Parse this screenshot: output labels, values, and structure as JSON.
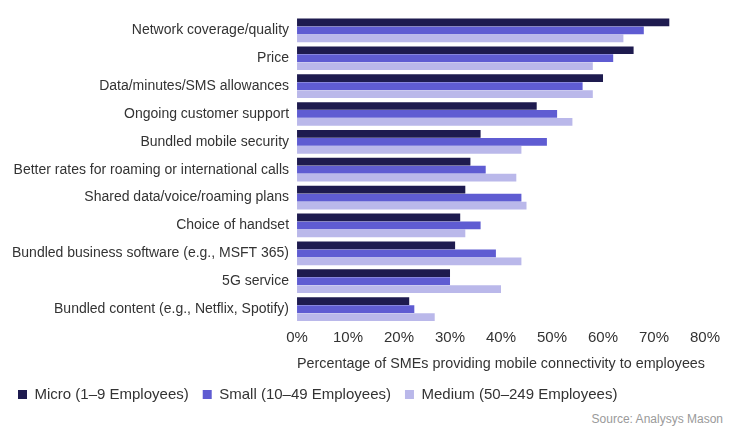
{
  "chart_data": {
    "type": "bar",
    "orientation": "horizontal",
    "xlabel": "Percentage of SMEs providing mobile connectivity to employees",
    "source": "Source: Analysys Mason",
    "categories": [
      "Network coverage/quality",
      "Price",
      "Data/minutes/SMS allowances",
      "Ongoing customer support",
      "Bundled mobile security",
      "Better rates for roaming or international calls",
      "Shared data/voice/roaming plans",
      "Choice of handset",
      "Bundled business software (e.g., MSFT 365)",
      "5G service",
      "Bundled content (e.g., Netflix, Spotify)"
    ],
    "series": [
      {
        "name": "Micro (1–9 Employees)",
        "color": "#1e1b4f",
        "values": [
          73,
          66,
          60,
          47,
          36,
          34,
          33,
          32,
          31,
          30,
          22
        ]
      },
      {
        "name": "Small (10–49 Employees)",
        "color": "#5f5cd2",
        "values": [
          68,
          62,
          56,
          51,
          49,
          37,
          44,
          36,
          39,
          30,
          23
        ]
      },
      {
        "name": "Medium (50–249 Employees)",
        "color": "#bab8ea",
        "values": [
          64,
          58,
          58,
          54,
          44,
          43,
          45,
          33,
          44,
          40,
          27
        ]
      }
    ],
    "xlim": [
      0,
      80
    ],
    "xticks": [
      {
        "value": 0,
        "label": "0%"
      },
      {
        "value": 10,
        "label": "10%"
      },
      {
        "value": 20,
        "label": "20%"
      },
      {
        "value": 30,
        "label": "30%"
      },
      {
        "value": 40,
        "label": "40%"
      },
      {
        "value": 50,
        "label": "50%"
      },
      {
        "value": 60,
        "label": "60%"
      },
      {
        "value": 70,
        "label": "70%"
      },
      {
        "value": 80,
        "label": "80%"
      }
    ],
    "grid": false,
    "legend": "bottom"
  }
}
